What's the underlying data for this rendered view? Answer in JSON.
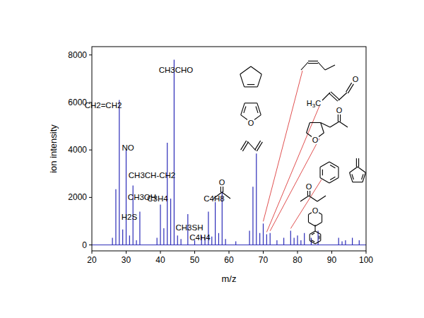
{
  "chart_data": {
    "type": "stem",
    "x_label": "m/z",
    "y_label": "ion intensity",
    "x": [
      26,
      27,
      28,
      29,
      30,
      31,
      32,
      33,
      34,
      39,
      40,
      41,
      42,
      43,
      44,
      45,
      46,
      48,
      50,
      52,
      53,
      54,
      55,
      56,
      57,
      58,
      59,
      62,
      66,
      67,
      68,
      69,
      70,
      71,
      72,
      74,
      76,
      78,
      79,
      80,
      81,
      82,
      84,
      86,
      92,
      93,
      94,
      96,
      98
    ],
    "values": [
      300,
      2350,
      6100,
      650,
      4000,
      400,
      2500,
      200,
      1400,
      300,
      1700,
      700,
      4300,
      1950,
      7800,
      400,
      250,
      1300,
      200,
      400,
      300,
      1400,
      350,
      1800,
      500,
      2250,
      250,
      150,
      600,
      2450,
      3850,
      500,
      900,
      450,
      500,
      200,
      300,
      600,
      300,
      400,
      200,
      500,
      300,
      600,
      300,
      150,
      200,
      300,
      200
    ],
    "color": "#2b2bb8",
    "xlim": [
      20,
      100
    ],
    "xticks": [
      20,
      30,
      40,
      50,
      60,
      70,
      80,
      90,
      100
    ],
    "ylim": [
      -250,
      8350
    ],
    "yticks": [
      0,
      2000,
      4000,
      6000,
      8000
    ],
    "grid": false,
    "annotations": [
      "CH2=CH2",
      "NO",
      "CH3CH-CH2",
      "CH3OH",
      "H2S",
      "C3H4",
      "CH3CHO",
      "CH3SH",
      "C4H4",
      "C4H8",
      "O",
      "O",
      "H3C",
      "O",
      "O",
      "O",
      "O",
      "O"
    ],
    "pointers": [
      70,
      71,
      72,
      78
    ]
  }
}
